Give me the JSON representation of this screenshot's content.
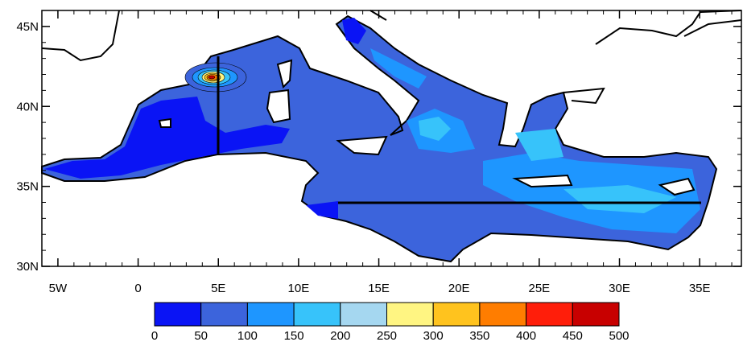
{
  "map": {
    "xlim": [
      -6,
      37.6
    ],
    "ylim": [
      30,
      46
    ],
    "xticks": [
      {
        "value": -5,
        "label": "5W"
      },
      {
        "value": 0,
        "label": "0"
      },
      {
        "value": 5,
        "label": "5E"
      },
      {
        "value": 10,
        "label": "10E"
      },
      {
        "value": 15,
        "label": "15E"
      },
      {
        "value": 20,
        "label": "20E"
      },
      {
        "value": 25,
        "label": "25E"
      },
      {
        "value": 30,
        "label": "30E"
      },
      {
        "value": 35,
        "label": "35E"
      }
    ],
    "yticks": [
      {
        "value": 30,
        "label": "30N"
      },
      {
        "value": 35,
        "label": "35N"
      },
      {
        "value": 40,
        "label": "40N"
      },
      {
        "value": 45,
        "label": "45N"
      }
    ]
  },
  "colorbar": {
    "levels": [
      0,
      50,
      100,
      150,
      200,
      250,
      300,
      350,
      400,
      450,
      500
    ],
    "colors": [
      "#0a14f5",
      "#3c64dc",
      "#1e96ff",
      "#37c3fa",
      "#a5d7f0",
      "#fff582",
      "#ffc31e",
      "#ff7d00",
      "#ff1e0a",
      "#c80000"
    ]
  }
}
